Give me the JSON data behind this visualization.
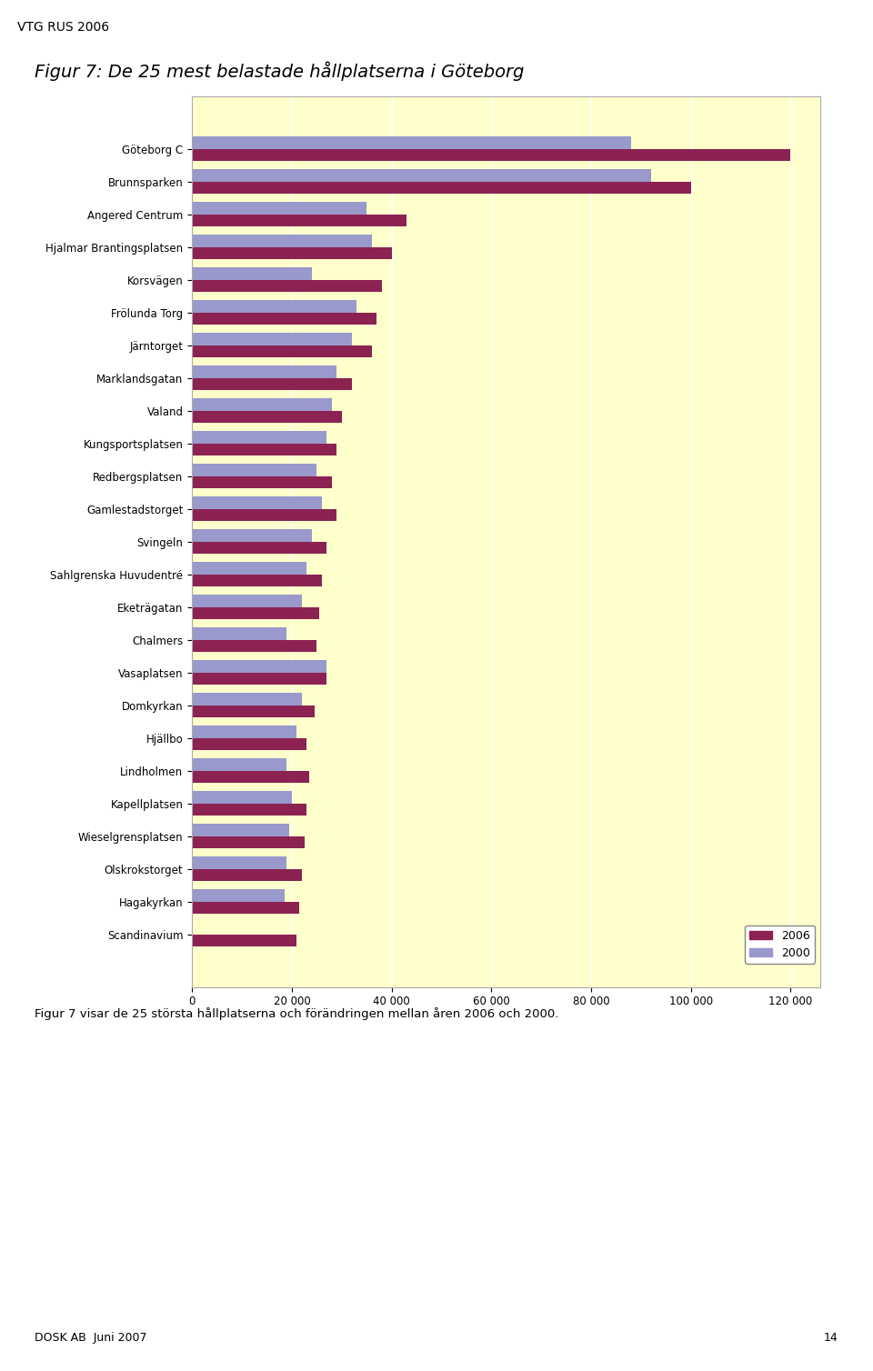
{
  "title": "Figur 7: De 25 mest belastade hållplatserna i Göteborg",
  "categories": [
    "Göteborg C",
    "Brunnsparken",
    "Angered Centrum",
    "Hjalmar Brantingsplatsen",
    "Korsvägen",
    "Frölunda Torg",
    "Järntorget",
    "Marklandsgatan",
    "Valand",
    "Kungsportsplatsen",
    "Redbergsplatsen",
    "Gamlestadstorget",
    "Svingeln",
    "Sahlgrenska Huvudentré",
    "Eketrägatan",
    "Chalmers",
    "Vasaplatsen",
    "Domkyrkan",
    "Hjällbo",
    "Lindholmen",
    "Kapellplatsen",
    "Wieselgrensplatsen",
    "Olskrokstorget",
    "Hagakyrkan",
    "Scandinavium"
  ],
  "values_2006": [
    120000,
    100000,
    43000,
    40000,
    38000,
    37000,
    36000,
    32000,
    30000,
    29000,
    28000,
    29000,
    27000,
    26000,
    25500,
    25000,
    27000,
    24500,
    23000,
    23500,
    23000,
    22500,
    22000,
    21500,
    21000
  ],
  "values_2000": [
    88000,
    92000,
    35000,
    36000,
    24000,
    33000,
    32000,
    29000,
    28000,
    27000,
    25000,
    26000,
    24000,
    23000,
    22000,
    19000,
    27000,
    22000,
    21000,
    19000,
    20000,
    19500,
    19000,
    18500,
    0
  ],
  "color_2006": "#8B2252",
  "color_2000": "#9999CC",
  "background_color": "#FFFFCC",
  "border_color": "#AAAAAA",
  "xlim": [
    0,
    120000
  ],
  "xticks": [
    0,
    20000,
    40000,
    60000,
    80000,
    100000,
    120000
  ],
  "xtick_labels": [
    "0",
    "20 000",
    "40 000",
    "60 000",
    "80 000",
    "100 000",
    "120 000"
  ],
  "legend_2006": "2006",
  "legend_2000": "2000",
  "header_text": "VTG RUS 2006",
  "footer_text": "Figur 7 visar de 25 största hållplatserna och förändringen mellan åren 2006 och 2000.",
  "footer_label": "DOSK AB  Juni 2007",
  "footer_page": "14"
}
